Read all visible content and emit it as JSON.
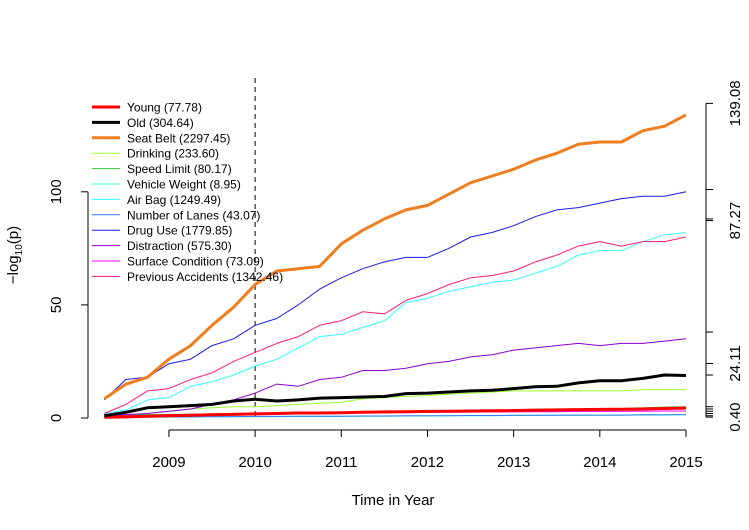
{
  "chart_data": {
    "type": "line",
    "xlabel": "Time in Year",
    "ylabel": "−log10(p)",
    "ylabel_main": "−log",
    "ylabel_sub": "10",
    "ylabel_tail": "(p)",
    "xlim": [
      2008.2,
      2015
    ],
    "ylim": [
      0,
      145
    ],
    "x_ticks": [
      2009,
      2010,
      2011,
      2012,
      2013,
      2014,
      2015
    ],
    "x_tick_labels": [
      "2009",
      "2010",
      "2011",
      "2012",
      "2013",
      "2014",
      "2015"
    ],
    "y_ticks": [
      0,
      50,
      100
    ],
    "y_tick_labels": [
      "0",
      "50",
      "100"
    ],
    "right_axis_labels": [
      "139.08",
      "87.27",
      "24.11",
      "0.40"
    ],
    "right_axis_ticks": [
      139.08,
      101,
      88,
      87.27,
      38,
      24.11,
      19,
      5,
      4,
      3,
      2,
      1,
      0.4
    ],
    "vline_x": 2010,
    "x": [
      2008.25,
      2008.5,
      2008.75,
      2009.0,
      2009.25,
      2009.5,
      2009.75,
      2010.0,
      2010.25,
      2010.5,
      2010.75,
      2011.0,
      2011.25,
      2011.5,
      2011.75,
      2012.0,
      2012.25,
      2012.5,
      2012.75,
      2013.0,
      2013.25,
      2013.5,
      2013.75,
      2014.0,
      2014.25,
      2014.5,
      2014.75,
      2015.0
    ],
    "series": [
      {
        "name": "Young (77.78)",
        "color": "#ff0000",
        "width": 3,
        "values": [
          0.3,
          0.5,
          0.8,
          1.0,
          1.2,
          1.4,
          1.6,
          1.8,
          2.0,
          2.2,
          2.2,
          2.3,
          2.5,
          2.7,
          2.8,
          2.9,
          3.0,
          3.1,
          3.2,
          3.3,
          3.5,
          3.6,
          3.7,
          3.8,
          3.9,
          4.0,
          4.2,
          4.4
        ]
      },
      {
        "name": "Old (304.64)",
        "color": "#000000",
        "width": 3,
        "values": [
          1,
          2.5,
          4.5,
          5,
          5.5,
          6,
          7.5,
          8.3,
          7.5,
          8,
          8.8,
          9,
          9.3,
          9.5,
          10.8,
          11,
          11.5,
          12,
          12.3,
          13,
          13.8,
          14,
          15.5,
          16.5,
          16.5,
          17.5,
          19,
          18.8
        ]
      },
      {
        "name": "Seat Belt (2297.45)",
        "color": "#f07d1e",
        "width": 3,
        "values": [
          8.5,
          15,
          18,
          26,
          32,
          41,
          49,
          59,
          65,
          66,
          67,
          77,
          83,
          88,
          92,
          94,
          99,
          104,
          107,
          110,
          114,
          117,
          121,
          122,
          122,
          127,
          129,
          134
        ]
      },
      {
        "name": "Drinking (233.60)",
        "color": "#99ff33",
        "width": 1,
        "values": [
          0.5,
          1,
          2,
          3,
          4,
          4.5,
          5,
          5,
          5.5,
          6,
          6.5,
          7,
          8.5,
          9,
          9.5,
          10,
          10.5,
          11,
          11.5,
          12,
          12,
          12,
          12,
          12,
          12,
          12.5,
          12.5,
          12.5
        ]
      },
      {
        "name": "Speed Limit (80.17)",
        "color": "#33cc33",
        "width": 1,
        "values": [
          1.3,
          1.5,
          1.5,
          1.6,
          1.7,
          1.8,
          1.9,
          2.0,
          2.1,
          2.2,
          2.2,
          2.3,
          2.4,
          2.5,
          2.6,
          2.7,
          2.8,
          2.9,
          3.0,
          3.2,
          3.4,
          3.6,
          3.8,
          4.0,
          4.2,
          4.5,
          4.8,
          5.0
        ]
      },
      {
        "name": "Vehicle Weight (8.95)",
        "color": "#33ffaa",
        "width": 1,
        "values": [
          0.2,
          0.3,
          0.3,
          0.4,
          0.4,
          0.5,
          0.5,
          0.6,
          0.6,
          0.7,
          0.7,
          0.7,
          0.8,
          0.8,
          0.9,
          0.9,
          1.0,
          1.0,
          1.0,
          1.1,
          1.1,
          1.2,
          1.2,
          1.2,
          1.3,
          1.3,
          1.3,
          1.4
        ]
      },
      {
        "name": "Air Bag (1249.49)",
        "color": "#33ffff",
        "width": 1,
        "values": [
          2,
          3.5,
          8,
          9,
          14,
          16,
          19,
          23,
          26,
          31,
          36,
          37,
          40,
          43,
          51,
          53,
          56,
          58,
          60,
          61,
          64,
          67,
          72,
          74,
          74,
          78,
          81,
          82
        ]
      },
      {
        "name": "Number of Lanes (43.07)",
        "color": "#3377ff",
        "width": 1,
        "values": [
          0.3,
          0.4,
          0.4,
          0.5,
          0.5,
          0.6,
          0.6,
          0.7,
          0.7,
          0.8,
          0.8,
          0.8,
          0.9,
          0.9,
          1.0,
          1.0,
          1.0,
          1.1,
          1.1,
          1.2,
          1.2,
          1.2,
          1.3,
          1.3,
          1.3,
          1.4,
          1.4,
          1.5
        ]
      },
      {
        "name": "Drug Use (1779.85)",
        "color": "#1a1aee",
        "width": 1,
        "values": [
          8,
          17,
          18,
          24,
          26,
          32,
          35,
          41,
          44,
          50,
          57,
          62,
          66,
          69,
          71,
          71,
          75,
          80,
          82,
          85,
          89,
          92,
          93,
          95,
          97,
          98,
          98,
          100
        ]
      },
      {
        "name": "Distraction (575.30)",
        "color": "#8800cc",
        "width": 1,
        "values": [
          0.8,
          1.5,
          2,
          3,
          4,
          6,
          8,
          11,
          15,
          14,
          17,
          18,
          21,
          21,
          22,
          24,
          25,
          27,
          28,
          30,
          31,
          32,
          33,
          32,
          33,
          33,
          34,
          35
        ]
      },
      {
        "name": "Surface Condition (73.09)",
        "color": "#ff00ff",
        "width": 1,
        "values": [
          0.8,
          1.0,
          1.2,
          1.4,
          1.5,
          1.6,
          1.7,
          1.8,
          1.9,
          2.0,
          2.0,
          2.1,
          2.2,
          2.3,
          2.4,
          2.5,
          2.5,
          2.6,
          2.7,
          2.7,
          2.8,
          2.8,
          2.9,
          2.9,
          3.0,
          3.0,
          3.1,
          3.1
        ]
      },
      {
        "name": "Previous Accidents (1342.46)",
        "color": "#ff1a75",
        "width": 1,
        "values": [
          2,
          6,
          12,
          13,
          17,
          20,
          25,
          29,
          33,
          36,
          41,
          43,
          47,
          46,
          52,
          55,
          59,
          62,
          63,
          65,
          69,
          72,
          76,
          78,
          76,
          78,
          78,
          80
        ]
      }
    ]
  }
}
